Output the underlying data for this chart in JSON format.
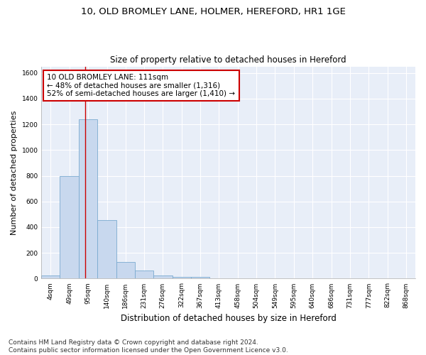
{
  "title1": "10, OLD BROMLEY LANE, HOLMER, HEREFORD, HR1 1GE",
  "title2": "Size of property relative to detached houses in Hereford",
  "xlabel": "Distribution of detached houses by size in Hereford",
  "ylabel": "Number of detached properties",
  "footer1": "Contains HM Land Registry data © Crown copyright and database right 2024.",
  "footer2": "Contains public sector information licensed under the Open Government Licence v3.0.",
  "annotation_line1": "10 OLD BROMLEY LANE: 111sqm",
  "annotation_line2": "← 48% of detached houses are smaller (1,316)",
  "annotation_line3": "52% of semi-detached houses are larger (1,410) →",
  "bar_edges": [
    4,
    49,
    95,
    140,
    186,
    231,
    276,
    322,
    367,
    413,
    458,
    504,
    549,
    595,
    640,
    686,
    731,
    777,
    822,
    868,
    913
  ],
  "bar_heights": [
    25,
    800,
    1240,
    455,
    130,
    65,
    25,
    15,
    15,
    5,
    2,
    0,
    0,
    0,
    0,
    0,
    0,
    0,
    0,
    0
  ],
  "bar_color": "#c8d8ee",
  "bar_edge_color": "#7aaad0",
  "red_line_x": 111,
  "ylim": [
    0,
    1650
  ],
  "yticks": [
    0,
    200,
    400,
    600,
    800,
    1000,
    1200,
    1400,
    1600
  ],
  "fig_bg": "#ffffff",
  "axes_bg": "#e8eef8",
  "grid_color": "#ffffff",
  "annotation_box_facecolor": "#ffffff",
  "annotation_box_edgecolor": "#cc0000",
  "red_line_color": "#cc0000",
  "title1_fontsize": 9.5,
  "title2_fontsize": 8.5,
  "ylabel_fontsize": 8,
  "xlabel_fontsize": 8.5,
  "tick_fontsize": 6.5,
  "footer_fontsize": 6.5,
  "annot_fontsize": 7.5
}
